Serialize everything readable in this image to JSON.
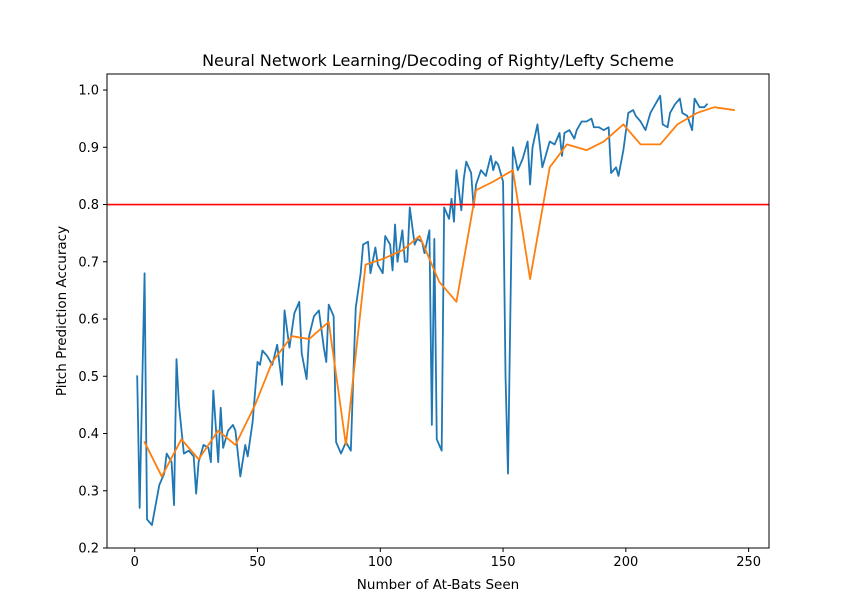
{
  "chart_data": {
    "type": "line",
    "title": "Neural Network Learning/Decoding of Righty/Lefty Scheme",
    "xlabel": "Number of At-Bats Seen",
    "ylabel": "Pitch Prediction Accuracy",
    "xlim": [
      -11.3,
      258.3
    ],
    "ylim": [
      0.2,
      1.028
    ],
    "xticks": [
      0,
      50,
      100,
      150,
      200,
      250
    ],
    "xtick_labels": [
      "0",
      "50",
      "100",
      "150",
      "200",
      "250"
    ],
    "yticks": [
      0.2,
      0.3,
      0.4,
      0.5,
      0.6,
      0.7,
      0.8,
      0.9,
      1.0
    ],
    "ytick_labels": [
      "0.2",
      "0.3",
      "0.4",
      "0.5",
      "0.6",
      "0.7",
      "0.8",
      "0.9",
      "1.0"
    ],
    "grid": false,
    "legend": "none",
    "hline": {
      "y": 0.8,
      "color": "#ff0000"
    },
    "series": [
      {
        "color": "#1f77b4",
        "points": [
          [
            1,
            0.5
          ],
          [
            2,
            0.27
          ],
          [
            4,
            0.68
          ],
          [
            5,
            0.25
          ],
          [
            7,
            0.24
          ],
          [
            10,
            0.31
          ],
          [
            12,
            0.33
          ],
          [
            13,
            0.365
          ],
          [
            15,
            0.35
          ],
          [
            16,
            0.275
          ],
          [
            17,
            0.53
          ],
          [
            18,
            0.45
          ],
          [
            20,
            0.365
          ],
          [
            22,
            0.37
          ],
          [
            24,
            0.36
          ],
          [
            25,
            0.295
          ],
          [
            26,
            0.35
          ],
          [
            28,
            0.38
          ],
          [
            30,
            0.375
          ],
          [
            31,
            0.35
          ],
          [
            32,
            0.475
          ],
          [
            34,
            0.35
          ],
          [
            35,
            0.445
          ],
          [
            36,
            0.375
          ],
          [
            38,
            0.405
          ],
          [
            40,
            0.415
          ],
          [
            41,
            0.405
          ],
          [
            43,
            0.325
          ],
          [
            45,
            0.38
          ],
          [
            46,
            0.36
          ],
          [
            48,
            0.42
          ],
          [
            50,
            0.525
          ],
          [
            51,
            0.52
          ],
          [
            52,
            0.545
          ],
          [
            54,
            0.535
          ],
          [
            56,
            0.52
          ],
          [
            58,
            0.555
          ],
          [
            60,
            0.485
          ],
          [
            61,
            0.615
          ],
          [
            63,
            0.55
          ],
          [
            65,
            0.61
          ],
          [
            67,
            0.63
          ],
          [
            68,
            0.54
          ],
          [
            70,
            0.495
          ],
          [
            71,
            0.57
          ],
          [
            73,
            0.605
          ],
          [
            75,
            0.615
          ],
          [
            77,
            0.55
          ],
          [
            78,
            0.525
          ],
          [
            79,
            0.625
          ],
          [
            81,
            0.605
          ],
          [
            82,
            0.385
          ],
          [
            84,
            0.365
          ],
          [
            86,
            0.385
          ],
          [
            88,
            0.37
          ],
          [
            89,
            0.5
          ],
          [
            90,
            0.62
          ],
          [
            92,
            0.68
          ],
          [
            93,
            0.73
          ],
          [
            95,
            0.735
          ],
          [
            96,
            0.68
          ],
          [
            98,
            0.725
          ],
          [
            99,
            0.695
          ],
          [
            101,
            0.68
          ],
          [
            102,
            0.745
          ],
          [
            104,
            0.73
          ],
          [
            105,
            0.685
          ],
          [
            106,
            0.765
          ],
          [
            107,
            0.7
          ],
          [
            109,
            0.755
          ],
          [
            110,
            0.7
          ],
          [
            111,
            0.7
          ],
          [
            112,
            0.795
          ],
          [
            114,
            0.73
          ],
          [
            115,
            0.74
          ],
          [
            117,
            0.735
          ],
          [
            118,
            0.715
          ],
          [
            120,
            0.755
          ],
          [
            121,
            0.415
          ],
          [
            122,
            0.74
          ],
          [
            123,
            0.39
          ],
          [
            125,
            0.37
          ],
          [
            126,
            0.795
          ],
          [
            128,
            0.775
          ],
          [
            129,
            0.81
          ],
          [
            130,
            0.77
          ],
          [
            131,
            0.86
          ],
          [
            133,
            0.79
          ],
          [
            134,
            0.845
          ],
          [
            135,
            0.875
          ],
          [
            137,
            0.855
          ],
          [
            138,
            0.795
          ],
          [
            139,
            0.835
          ],
          [
            141,
            0.86
          ],
          [
            142,
            0.855
          ],
          [
            143,
            0.85
          ],
          [
            145,
            0.885
          ],
          [
            146,
            0.86
          ],
          [
            147,
            0.875
          ],
          [
            148,
            0.87
          ],
          [
            150,
            0.84
          ],
          [
            151,
            0.5
          ],
          [
            152,
            0.33
          ],
          [
            153,
            0.62
          ],
          [
            154,
            0.9
          ],
          [
            156,
            0.86
          ],
          [
            158,
            0.88
          ],
          [
            160,
            0.91
          ],
          [
            161,
            0.835
          ],
          [
            162,
            0.9
          ],
          [
            164,
            0.94
          ],
          [
            166,
            0.865
          ],
          [
            167,
            0.88
          ],
          [
            169,
            0.91
          ],
          [
            171,
            0.905
          ],
          [
            173,
            0.925
          ],
          [
            174,
            0.885
          ],
          [
            175,
            0.925
          ],
          [
            177,
            0.93
          ],
          [
            179,
            0.915
          ],
          [
            180,
            0.93
          ],
          [
            182,
            0.945
          ],
          [
            184,
            0.945
          ],
          [
            186,
            0.95
          ],
          [
            187,
            0.935
          ],
          [
            189,
            0.935
          ],
          [
            191,
            0.93
          ],
          [
            193,
            0.935
          ],
          [
            194,
            0.855
          ],
          [
            196,
            0.865
          ],
          [
            197,
            0.85
          ],
          [
            199,
            0.895
          ],
          [
            201,
            0.96
          ],
          [
            203,
            0.965
          ],
          [
            204,
            0.955
          ],
          [
            206,
            0.945
          ],
          [
            208,
            0.93
          ],
          [
            210,
            0.96
          ],
          [
            212,
            0.975
          ],
          [
            214,
            0.99
          ],
          [
            215,
            0.94
          ],
          [
            217,
            0.935
          ],
          [
            218,
            0.96
          ],
          [
            220,
            0.975
          ],
          [
            222,
            0.985
          ],
          [
            223,
            0.96
          ],
          [
            225,
            0.955
          ],
          [
            227,
            0.93
          ],
          [
            228,
            0.985
          ],
          [
            230,
            0.97
          ],
          [
            232,
            0.97
          ],
          [
            233,
            0.975
          ]
        ]
      },
      {
        "color": "#ff7f0e",
        "points": [
          [
            4,
            0.385
          ],
          [
            11,
            0.325
          ],
          [
            19,
            0.39
          ],
          [
            26,
            0.355
          ],
          [
            34,
            0.405
          ],
          [
            41,
            0.38
          ],
          [
            49,
            0.45
          ],
          [
            56,
            0.525
          ],
          [
            64,
            0.57
          ],
          [
            71,
            0.565
          ],
          [
            79,
            0.595
          ],
          [
            86,
            0.38
          ],
          [
            94,
            0.695
          ],
          [
            101,
            0.705
          ],
          [
            109,
            0.72
          ],
          [
            116,
            0.745
          ],
          [
            124,
            0.665
          ],
          [
            131,
            0.63
          ],
          [
            139,
            0.825
          ],
          [
            146,
            0.84
          ],
          [
            154,
            0.86
          ],
          [
            161,
            0.67
          ],
          [
            169,
            0.865
          ],
          [
            176,
            0.905
          ],
          [
            184,
            0.895
          ],
          [
            191,
            0.91
          ],
          [
            199,
            0.94
          ],
          [
            206,
            0.905
          ],
          [
            214,
            0.905
          ],
          [
            221,
            0.94
          ],
          [
            229,
            0.96
          ],
          [
            236,
            0.97
          ],
          [
            244,
            0.965
          ]
        ]
      }
    ]
  }
}
